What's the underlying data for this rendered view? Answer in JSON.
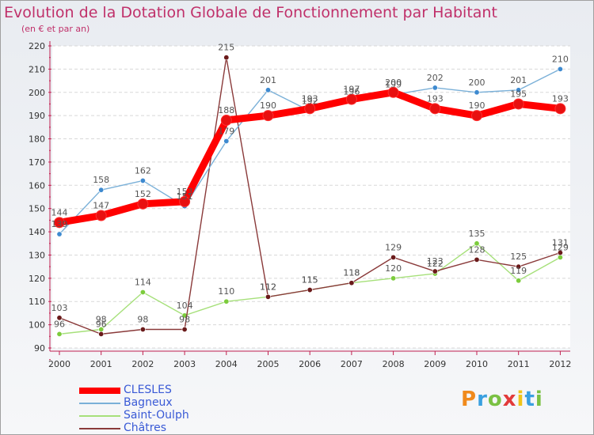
{
  "title": "Evolution de la Dotation Globale de Fonctionnement par Habitant",
  "subtitle": "(en € et par an)",
  "logo_text": "Proxiti",
  "chart_data": {
    "type": "line",
    "title": "Evolution de la Dotation Globale de Fonctionnement par Habitant",
    "ylabel": "(en € et par an)",
    "xlabel": "",
    "ylim": [
      90,
      220
    ],
    "y_ticks": [
      "90",
      "100",
      "110",
      "120",
      "130",
      "140",
      "150",
      "160",
      "170",
      "180",
      "190",
      "200",
      "210",
      "220"
    ],
    "x": [
      "2000",
      "2001",
      "2002",
      "2003",
      "2004",
      "2005",
      "2006",
      "2007",
      "2008",
      "2009",
      "2010",
      "2011",
      "2012"
    ],
    "grid": "horizontal",
    "legend_position": "bottom-left",
    "series": [
      {
        "name": "CLESLES",
        "color": "#ff0000",
        "marker": "#e81010",
        "values": [
          144,
          147,
          152,
          153,
          188,
          190,
          193,
          197,
          200,
          193,
          190,
          195,
          193
        ],
        "labels": [
          "144",
          "147",
          "152",
          "153",
          "188",
          "190",
          "193",
          "197",
          "200",
          "193",
          "190",
          "195",
          "193"
        ]
      },
      {
        "name": "Bagneux",
        "color": "#7ab0d8",
        "marker": "#3e8ad0",
        "values": [
          139,
          158,
          162,
          151,
          179,
          201,
          192,
          196,
          199,
          202,
          200,
          201,
          210
        ],
        "labels": [
          "139",
          "158",
          "162",
          "151",
          "179",
          "201",
          "192",
          "196",
          "199",
          "202",
          "200",
          "201",
          "210"
        ]
      },
      {
        "name": "Saint-Oulph",
        "color": "#a6e07a",
        "marker": "#7ccc3c",
        "values": [
          96,
          98,
          114,
          104,
          110,
          112,
          115,
          118,
          120,
          122,
          135,
          119,
          129
        ],
        "labels": [
          "96",
          "98",
          "114",
          "104",
          "110",
          "112",
          "115",
          "118",
          "120",
          "122",
          "135",
          "119",
          "129"
        ]
      },
      {
        "name": "Châtres",
        "color": "#8a3a3a",
        "marker": "#6a1a1a",
        "values": [
          103,
          96,
          98,
          98,
          215,
          112,
          115,
          118,
          129,
          123,
          128,
          125,
          131
        ],
        "labels": [
          "103",
          "96",
          "98",
          "98",
          "215",
          "112",
          "115",
          "118",
          "129",
          "123",
          "128",
          "125",
          "131"
        ]
      }
    ]
  }
}
